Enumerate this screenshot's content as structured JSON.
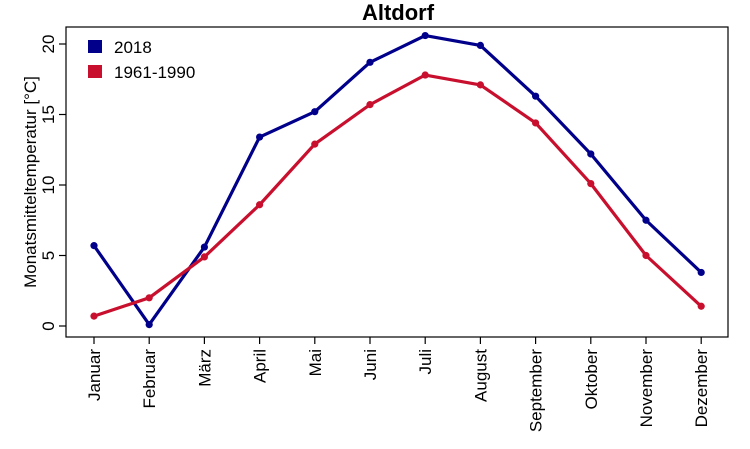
{
  "chart_data": {
    "type": "line",
    "title": "Altdorf",
    "xlabel": "",
    "ylabel": "Monatsmitteltemperatur [°C]",
    "categories": [
      "Januar",
      "Februar",
      "März",
      "April",
      "Mai",
      "Juni",
      "Juli",
      "August",
      "September",
      "Oktober",
      "November",
      "Dezember"
    ],
    "yticks": [
      0,
      5,
      10,
      15,
      20
    ],
    "ylim": [
      -0.3,
      20.8
    ],
    "grid": false,
    "legend_position": "top-left",
    "series": [
      {
        "name": "2018",
        "color": "#00008B",
        "values": [
          5.7,
          0.1,
          5.6,
          13.4,
          15.2,
          18.7,
          20.6,
          19.9,
          16.3,
          12.2,
          7.5,
          3.8
        ]
      },
      {
        "name": "1961-1990",
        "color": "#C8102E",
        "values": [
          0.7,
          2.0,
          4.9,
          8.6,
          12.9,
          15.7,
          17.8,
          17.1,
          14.4,
          10.1,
          5.0,
          1.4
        ]
      }
    ]
  }
}
